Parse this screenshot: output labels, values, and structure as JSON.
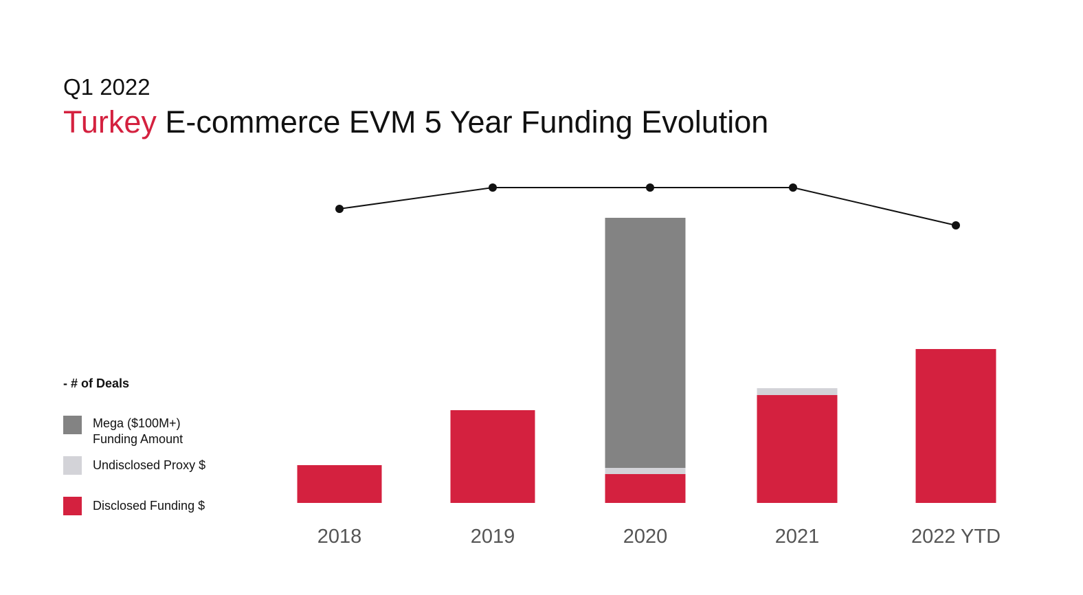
{
  "header": {
    "subtitle": "Q1 2022",
    "title_highlight": "Turkey",
    "title_rest": "E-commerce EVM 5 Year Funding Evolution"
  },
  "legend": {
    "deals_label": "- # of Deals",
    "items": [
      {
        "label": "Mega ($100M+)\nFunding Amount",
        "color": "#838383"
      },
      {
        "label": "Undisclosed Proxy $",
        "color": "#d3d3d8"
      },
      {
        "label": "Disclosed Funding $",
        "color": "#d4213f"
      }
    ]
  },
  "colors": {
    "disclosed": "#d4213f",
    "undisclosed": "#d3d3d8",
    "mega": "#838383",
    "line": "#111111",
    "highlight": "#d4213f"
  },
  "chart_data": {
    "type": "bar",
    "stacked": true,
    "categories": [
      "2018",
      "2019",
      "2020",
      "2021",
      "2022 YTD"
    ],
    "series": [
      {
        "name": "Disclosed Funding $",
        "values": [
          55,
          135,
          42,
          157,
          224
        ]
      },
      {
        "name": "Undisclosed Proxy $",
        "values": [
          0,
          0,
          9,
          10,
          0
        ]
      },
      {
        "name": "Mega ($100M+) Funding Amount",
        "values": [
          0,
          0,
          364,
          0,
          0
        ]
      }
    ],
    "line_series": {
      "name": "# of Deals",
      "values": [
        428,
        459,
        459,
        459,
        404
      ]
    },
    "ylim": [
      0,
      415
    ],
    "line_ylim": [
      0,
      460
    ],
    "grid": false,
    "legend_position": "left"
  }
}
